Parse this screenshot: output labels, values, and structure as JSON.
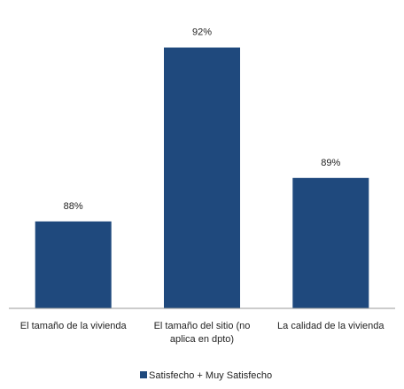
{
  "chart_data": {
    "type": "bar",
    "categories": [
      [
        "El tamaño de la vivienda"
      ],
      [
        "El tamaño del sitio (no",
        "aplica en dpto)"
      ],
      [
        "La calidad de la vivienda"
      ]
    ],
    "series": [
      {
        "name": "Satisfecho + Muy Satisfecho",
        "values": [
          88,
          92,
          89
        ],
        "value_labels": [
          "88%",
          "92%",
          "89%"
        ],
        "color": "#1F497D"
      }
    ],
    "ylim": [
      86,
      92.4
    ],
    "grid": false,
    "legend": "bottom-center"
  }
}
